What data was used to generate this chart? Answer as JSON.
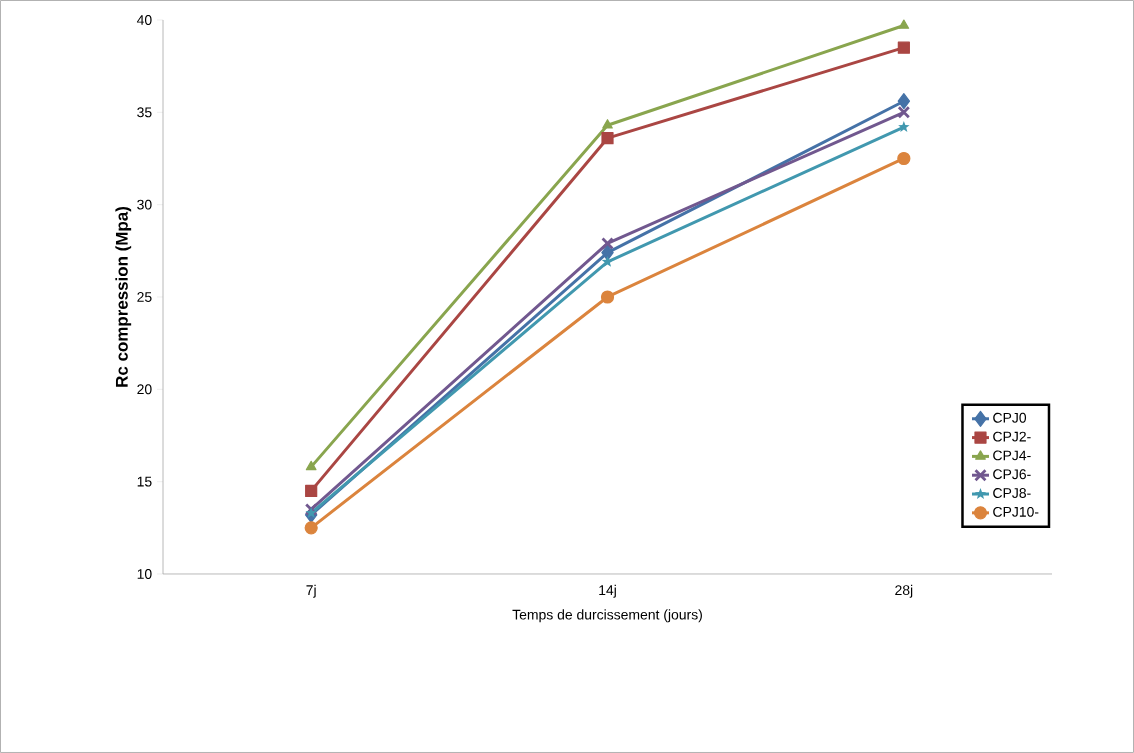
{
  "chart_data": {
    "type": "line",
    "xlabel": "Temps de durcissement (jours)",
    "ylabel": "Rc compression (Mpa)",
    "categories": [
      "7j",
      "14j",
      "28j"
    ],
    "ylim": [
      10,
      40
    ],
    "yticks": [
      10,
      15,
      20,
      25,
      30,
      35,
      40
    ],
    "grid": false,
    "legend": "bottom right",
    "line_style": "solid",
    "series": [
      {
        "name": "CPJ0",
        "color": "#4572a7",
        "marker": "diamond",
        "values": [
          13.2,
          27.4,
          35.6
        ]
      },
      {
        "name": "CPJ2-",
        "color": "#aa4643",
        "marker": "square",
        "values": [
          14.5,
          33.6,
          38.5
        ]
      },
      {
        "name": "CPJ4-",
        "color": "#89a54e",
        "marker": "triangle",
        "values": [
          15.8,
          34.3,
          39.7
        ]
      },
      {
        "name": "CPJ6-",
        "color": "#71588f",
        "marker": "cross",
        "values": [
          13.5,
          27.9,
          35.0
        ]
      },
      {
        "name": "CPJ8-",
        "color": "#4198af",
        "marker": "star",
        "values": [
          13.3,
          26.9,
          34.2
        ]
      },
      {
        "name": "CPJ10-",
        "color": "#db843d",
        "marker": "circle",
        "values": [
          12.5,
          25.0,
          32.5
        ]
      }
    ]
  }
}
